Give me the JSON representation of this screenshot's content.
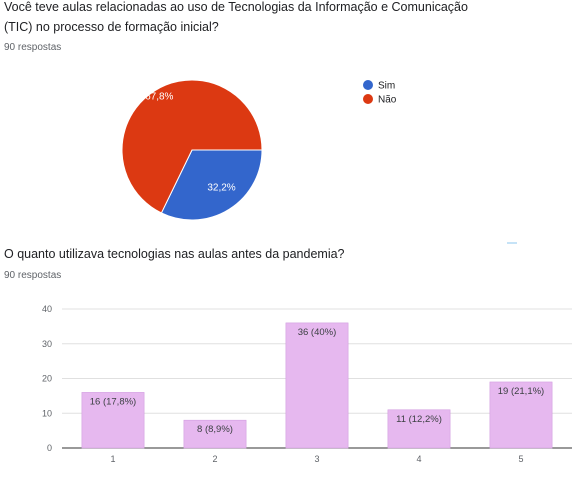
{
  "questions": [
    {
      "title_line1": "Você teve aulas relacionadas ao uso de Tecnologias da Informação e Comunicação",
      "title_line2": "(TIC) no processo de formação inicial?",
      "responses": "90 respostas"
    },
    {
      "title": "O quanto utilizava tecnologias nas aulas antes da pandemia?",
      "responses": "90 respostas"
    }
  ],
  "chart_data": [
    {
      "type": "pie",
      "labels": [
        "Sim",
        "Não"
      ],
      "values": [
        32.2,
        67.8
      ],
      "value_labels": [
        "32,2%",
        "67,8%"
      ],
      "colors": [
        "#3366cc",
        "#dc3912"
      ],
      "legend": "right"
    },
    {
      "type": "bar",
      "categories": [
        "1",
        "2",
        "3",
        "4",
        "5"
      ],
      "values": [
        16,
        8,
        36,
        11,
        19
      ],
      "value_labels": [
        "16 (17,8%)",
        "8 (8,9%)",
        "36 (40%)",
        "11 (12,2%)",
        "19 (21,1%)"
      ],
      "ylim": [
        0,
        40
      ],
      "yticks": [
        0,
        10,
        20,
        30,
        40
      ],
      "grid": true,
      "bar_color": "#e6b8ef",
      "bar_border": "#d39ee0"
    }
  ]
}
